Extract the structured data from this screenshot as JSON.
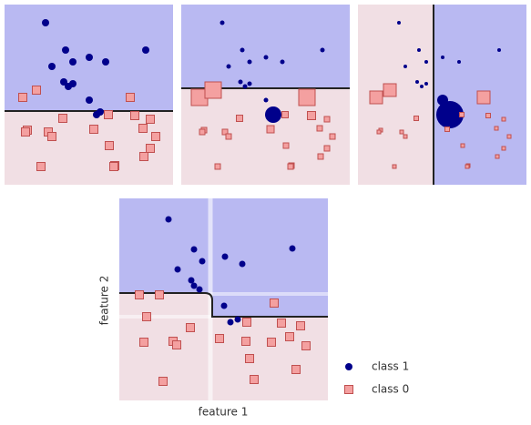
{
  "chart_data": [
    {
      "type": "scatter",
      "xlim": [
        0,
        185
      ],
      "ylim": [
        0,
        198
      ],
      "split": {
        "axis": "y",
        "value": 81
      },
      "series": [
        {
          "color": "#00008b",
          "x": [
            45,
            67,
            75,
            93,
            111,
            155,
            52,
            65,
            70,
            75,
            93,
            101,
            105
          ],
          "values": [
            178,
            148,
            135,
            140,
            135,
            148,
            130,
            113,
            108,
            111,
            93,
            77,
            80
          ],
          "sizes": [
            8,
            8,
            8,
            8,
            8,
            8,
            8,
            8,
            8,
            8,
            8,
            8,
            8
          ]
        },
        {
          "color": "#f4a0a0",
          "x": [
            20,
            35,
            25,
            138,
            114,
            143,
            160,
            64,
            23,
            48,
            52,
            98,
            115,
            152,
            166,
            153,
            121,
            40,
            120,
            160
          ],
          "values": [
            96,
            104,
            60,
            96,
            77,
            76,
            72,
            73,
            58,
            58,
            53,
            61,
            43,
            62,
            53,
            31,
            21,
            20,
            20,
            40
          ],
          "sizes": [
            9,
            9,
            9,
            9,
            9,
            9,
            9,
            9,
            9,
            9,
            9,
            9,
            9,
            9,
            9,
            9,
            9,
            9,
            9,
            9
          ]
        }
      ]
    },
    {
      "type": "scatter",
      "xlim": [
        0,
        185
      ],
      "ylim": [
        0,
        198
      ],
      "split": {
        "axis": "y",
        "value": 106
      },
      "series": [
        {
          "color": "#00008b",
          "x": [
            45,
            67,
            75,
            93,
            111,
            155,
            52,
            65,
            70,
            75,
            93,
            101,
            105
          ],
          "values": [
            178,
            148,
            135,
            140,
            135,
            148,
            130,
            113,
            108,
            111,
            93,
            77,
            80
          ],
          "sizes": [
            5,
            5,
            5,
            5,
            5,
            5,
            5,
            5,
            5,
            5,
            5,
            18,
            5
          ]
        },
        {
          "color": "#f4a0a0",
          "x": [
            20,
            35,
            25,
            138,
            114,
            143,
            160,
            64,
            23,
            48,
            52,
            98,
            115,
            152,
            166,
            153,
            121,
            40,
            120,
            160
          ],
          "values": [
            96,
            104,
            60,
            96,
            77,
            76,
            72,
            73,
            58,
            58,
            53,
            61,
            43,
            62,
            53,
            31,
            21,
            20,
            20,
            40
          ],
          "sizes": [
            18,
            18,
            6,
            18,
            7,
            9,
            6,
            7,
            6,
            6,
            6,
            8,
            6,
            6,
            6,
            6,
            6,
            6,
            6,
            6
          ]
        }
      ]
    },
    {
      "type": "scatter",
      "xlim": [
        0,
        185
      ],
      "ylim": [
        0,
        198
      ],
      "split": {
        "axis": "x",
        "value": 83
      },
      "series": [
        {
          "color": "#00008b",
          "x": [
            45,
            67,
            75,
            93,
            111,
            155,
            52,
            65,
            70,
            75,
            93,
            101,
            105
          ],
          "values": [
            178,
            148,
            135,
            140,
            135,
            148,
            130,
            113,
            108,
            111,
            93,
            77,
            80
          ],
          "sizes": [
            4,
            4,
            4,
            4,
            4,
            4,
            4,
            4,
            4,
            4,
            12,
            30,
            4
          ]
        },
        {
          "color": "#f4a0a0",
          "x": [
            20,
            35,
            25,
            138,
            114,
            143,
            160,
            64,
            23,
            48,
            52,
            98,
            115,
            152,
            166,
            153,
            121,
            40,
            120,
            160
          ],
          "values": [
            96,
            104,
            60,
            96,
            77,
            76,
            72,
            73,
            58,
            58,
            53,
            61,
            43,
            62,
            53,
            31,
            21,
            20,
            20,
            40
          ],
          "sizes": [
            14,
            14,
            4,
            14,
            5,
            5,
            4,
            5,
            4,
            4,
            4,
            5,
            4,
            4,
            4,
            4,
            4,
            4,
            4,
            4
          ]
        }
      ]
    },
    {
      "type": "scatter",
      "xlim": [
        0,
        229
      ],
      "ylim": [
        0,
        222
      ],
      "xlabel": "feature 1",
      "ylabel": "feature 2",
      "series": [
        {
          "name": "class 1",
          "color": "#00008b",
          "x": [
            54,
            82,
            91,
            116,
            135,
            190,
            64,
            79,
            82,
            88,
            115,
            122,
            130
          ],
          "values": [
            199,
            166,
            153,
            158,
            150,
            167,
            144,
            132,
            126,
            122,
            104,
            86,
            89
          ]
        },
        {
          "name": "class 0",
          "color": "#f4a0a0",
          "x": [
            22,
            44,
            30,
            170,
            140,
            178,
            199,
            78,
            27,
            59,
            63,
            110,
            139,
            167,
            187,
            205,
            143,
            48,
            148,
            194
          ],
          "values": [
            116,
            116,
            92,
            107,
            86,
            85,
            82,
            80,
            64,
            65,
            61,
            68,
            65,
            64,
            70,
            60,
            46,
            21,
            23,
            34
          ]
        }
      ]
    }
  ]
}
